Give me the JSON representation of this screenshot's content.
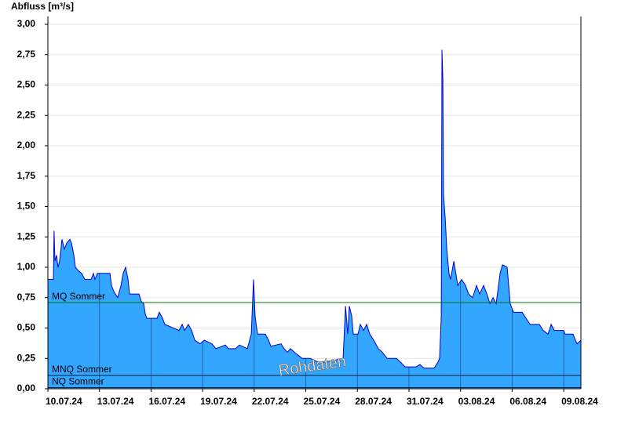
{
  "chart_data": {
    "type": "area",
    "y_label": "Abfluss [m³/s]",
    "watermark": "Rohdaten",
    "color": "#0000cc",
    "fill_color": "#33a6ff",
    "grid": true,
    "xlim": [
      0,
      31
    ],
    "ylim": [
      0,
      3
    ],
    "xticks": [
      {
        "value": 0,
        "label": "10.07.24"
      },
      {
        "value": 3,
        "label": "13.07.24"
      },
      {
        "value": 6,
        "label": "16.07.24"
      },
      {
        "value": 9,
        "label": "19.07.24"
      },
      {
        "value": 12,
        "label": "22.07.24"
      },
      {
        "value": 15,
        "label": "25.07.24"
      },
      {
        "value": 18,
        "label": "28.07.24"
      },
      {
        "value": 21,
        "label": "31.07.24"
      },
      {
        "value": 24,
        "label": "03.08.24"
      },
      {
        "value": 27,
        "label": "06.08.24"
      },
      {
        "value": 30,
        "label": "09.08.24"
      }
    ],
    "yticks": [
      {
        "value": 0,
        "label": "0,00"
      },
      {
        "value": 0.25,
        "label": "0,25"
      },
      {
        "value": 0.5,
        "label": "0,50"
      },
      {
        "value": 0.75,
        "label": "0,75"
      },
      {
        "value": 1,
        "label": "1,00"
      },
      {
        "value": 1.25,
        "label": "1,25"
      },
      {
        "value": 1.5,
        "label": "1,50"
      },
      {
        "value": 1.75,
        "label": "1,75"
      },
      {
        "value": 2,
        "label": "2,00"
      },
      {
        "value": 2.25,
        "label": "2,25"
      },
      {
        "value": 2.5,
        "label": "2,50"
      },
      {
        "value": 2.75,
        "label": "2,75"
      },
      {
        "value": 3,
        "label": "3,00"
      }
    ],
    "reference_lines": [
      {
        "label": "MQ Sommer",
        "value": 0.71,
        "color": "#007700"
      },
      {
        "label": "MNQ Sommer",
        "value": 0.11,
        "color": "#002244"
      },
      {
        "label": "NQ Sommer",
        "value": 0.01,
        "color": "#002244"
      }
    ],
    "x": [
      0,
      0.32,
      0.36,
      0.41,
      0.5,
      0.59,
      0.68,
      0.82,
      0.96,
      1.1,
      1.28,
      1.37,
      1.51,
      1.6,
      1.78,
      1.96,
      2.15,
      2.51,
      2.65,
      2.74,
      2.88,
      3.61,
      3.7,
      3.84,
      4.06,
      4.25,
      4.38,
      4.52,
      4.66,
      4.75,
      5.3,
      5.43,
      5.57,
      5.66,
      5.75,
      6.35,
      6.48,
      6.67,
      6.8,
      7.63,
      7.81,
      7.95,
      8.17,
      8.36,
      8.54,
      8.86,
      9.09,
      9.54,
      9.77,
      10.32,
      10.5,
      10.91,
      11.14,
      11.6,
      11.83,
      11.96,
      12.05,
      12.19,
      12.65,
      12.83,
      12.97,
      13.56,
      13.74,
      13.93,
      14.11,
      14.34,
      14.79,
      15.25,
      15.71,
      16.16,
      17.17,
      17.31,
      17.44,
      17.53,
      17.67,
      17.76,
      18.04,
      18.17,
      18.36,
      18.54,
      18.72,
      18.95,
      19.22,
      19.45,
      19.73,
      20.27,
      20.5,
      20.78,
      21.42,
      21.64,
      21.87,
      22.47,
      22.69,
      22.78,
      22.88,
      22.92,
      22.97,
      23.01,
      23.11,
      23.2,
      23.33,
      23.42,
      23.61,
      23.84,
      24.06,
      24.29,
      24.47,
      24.7,
      24.93,
      25.11,
      25.34,
      25.53,
      25.71,
      25.89,
      26.07,
      26.3,
      26.44,
      26.71,
      26.89,
      27.08,
      27.58,
      27.81,
      28.04,
      28.58,
      28.81,
      29.09,
      29.27,
      29.45,
      30,
      30.08,
      30.54,
      30.68,
      30.78,
      31
    ],
    "values": [
      0.9,
      0.9,
      1.3,
      1.05,
      1.1,
      1.0,
      1.05,
      1.23,
      1.15,
      1.2,
      1.23,
      1.2,
      1.1,
      1.0,
      0.97,
      0.95,
      0.9,
      0.9,
      0.95,
      0.9,
      0.95,
      0.95,
      0.85,
      0.8,
      0.75,
      0.85,
      0.95,
      1.0,
      0.9,
      0.78,
      0.78,
      0.72,
      0.7,
      0.62,
      0.58,
      0.58,
      0.63,
      0.58,
      0.53,
      0.48,
      0.53,
      0.48,
      0.53,
      0.48,
      0.4,
      0.37,
      0.4,
      0.37,
      0.33,
      0.36,
      0.33,
      0.33,
      0.36,
      0.33,
      0.45,
      0.9,
      0.6,
      0.45,
      0.45,
      0.4,
      0.35,
      0.37,
      0.33,
      0.3,
      0.33,
      0.3,
      0.25,
      0.25,
      0.22,
      0.22,
      0.25,
      0.68,
      0.45,
      0.68,
      0.6,
      0.45,
      0.45,
      0.53,
      0.48,
      0.53,
      0.45,
      0.4,
      0.33,
      0.3,
      0.25,
      0.25,
      0.22,
      0.18,
      0.18,
      0.2,
      0.17,
      0.17,
      0.22,
      0.25,
      0.6,
      2.79,
      2.55,
      1.6,
      1.4,
      1.15,
      0.95,
      0.9,
      1.05,
      0.85,
      0.9,
      0.85,
      0.78,
      0.75,
      0.85,
      0.78,
      0.85,
      0.78,
      0.7,
      0.75,
      0.7,
      0.95,
      1.02,
      1.0,
      0.7,
      0.63,
      0.63,
      0.58,
      0.53,
      0.53,
      0.48,
      0.45,
      0.53,
      0.48,
      0.48,
      0.45,
      0.45,
      0.4,
      0.37,
      0.4
    ]
  }
}
